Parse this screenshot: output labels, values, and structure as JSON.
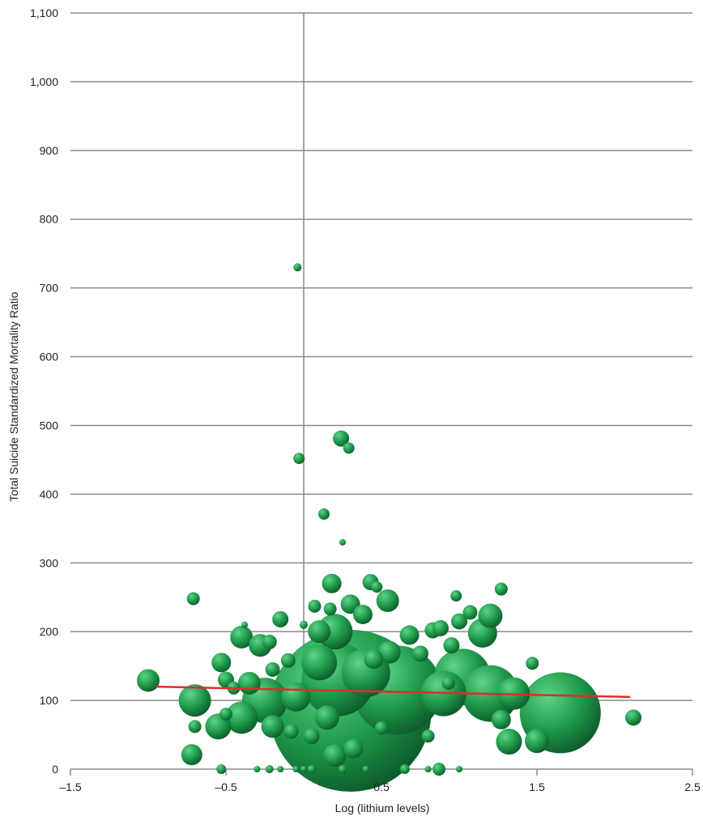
{
  "chart_data": {
    "type": "scatter",
    "subtype": "bubble",
    "title": "",
    "xlabel": "Log (lithium levels)",
    "ylabel": "Total Suicide Standardized Mortality Ratio",
    "xlim": [
      -1.5,
      2.5
    ],
    "ylim": [
      0,
      1100
    ],
    "x_ticks": [
      -1.5,
      -0.5,
      0.5,
      1.5,
      2.5
    ],
    "x_tick_labels": [
      "–1.5",
      "–0.5",
      "0.5",
      "1.5",
      "2.5"
    ],
    "y_ticks": [
      0,
      100,
      200,
      300,
      400,
      500,
      600,
      700,
      800,
      900,
      1000,
      1100
    ],
    "y_tick_labels": [
      "0",
      "100",
      "200",
      "300",
      "400",
      "500",
      "600",
      "700",
      "800",
      "900",
      "1,000",
      "1,100"
    ],
    "grid": "horizontal",
    "zero_line_x": 0,
    "bubble_color": "#1f9a4a",
    "trend_color": "#e32b2b",
    "trendline": {
      "x": [
        -0.95,
        2.1
      ],
      "y": [
        120,
        105
      ]
    },
    "points": [
      {
        "x": -0.04,
        "y": 730,
        "size": 5
      },
      {
        "x": -0.03,
        "y": 452,
        "size": 7
      },
      {
        "x": 0.24,
        "y": 481,
        "size": 10
      },
      {
        "x": 0.29,
        "y": 467,
        "size": 7
      },
      {
        "x": 0.13,
        "y": 371,
        "size": 7
      },
      {
        "x": 0.25,
        "y": 330,
        "size": 4
      },
      {
        "x": -0.71,
        "y": 248,
        "size": 8
      },
      {
        "x": 0.18,
        "y": 270,
        "size": 12
      },
      {
        "x": 0.43,
        "y": 272,
        "size": 10
      },
      {
        "x": 0.47,
        "y": 265,
        "size": 7
      },
      {
        "x": 1.27,
        "y": 262,
        "size": 8
      },
      {
        "x": 0.98,
        "y": 252,
        "size": 7
      },
      {
        "x": 0.54,
        "y": 245,
        "size": 14
      },
      {
        "x": 0.3,
        "y": 240,
        "size": 12
      },
      {
        "x": 0.07,
        "y": 237,
        "size": 8
      },
      {
        "x": 0.17,
        "y": 233,
        "size": 8
      },
      {
        "x": -0.15,
        "y": 218,
        "size": 10
      },
      {
        "x": -0.38,
        "y": 210,
        "size": 4
      },
      {
        "x": 0.0,
        "y": 210,
        "size": 5
      },
      {
        "x": 0.1,
        "y": 200,
        "size": 14
      },
      {
        "x": 0.2,
        "y": 200,
        "size": 22
      },
      {
        "x": -0.4,
        "y": 192,
        "size": 14
      },
      {
        "x": -0.28,
        "y": 180,
        "size": 14
      },
      {
        "x": -0.22,
        "y": 185,
        "size": 9
      },
      {
        "x": 0.38,
        "y": 225,
        "size": 12
      },
      {
        "x": 0.45,
        "y": 160,
        "size": 12
      },
      {
        "x": 0.68,
        "y": 195,
        "size": 12
      },
      {
        "x": 0.83,
        "y": 202,
        "size": 10
      },
      {
        "x": 0.88,
        "y": 205,
        "size": 10
      },
      {
        "x": 0.95,
        "y": 180,
        "size": 10
      },
      {
        "x": 1.0,
        "y": 215,
        "size": 10
      },
      {
        "x": 1.07,
        "y": 228,
        "size": 9
      },
      {
        "x": 1.2,
        "y": 223,
        "size": 15
      },
      {
        "x": 1.15,
        "y": 198,
        "size": 18
      },
      {
        "x": 1.47,
        "y": 154,
        "size": 8
      },
      {
        "x": -0.53,
        "y": 155,
        "size": 12
      },
      {
        "x": -0.5,
        "y": 130,
        "size": 10
      },
      {
        "x": -0.45,
        "y": 118,
        "size": 8
      },
      {
        "x": -0.35,
        "y": 125,
        "size": 14
      },
      {
        "x": -0.2,
        "y": 145,
        "size": 9
      },
      {
        "x": -0.1,
        "y": 158,
        "size": 9
      },
      {
        "x": 0.1,
        "y": 155,
        "size": 22
      },
      {
        "x": 0.22,
        "y": 130,
        "size": 45
      },
      {
        "x": 0.3,
        "y": 85,
        "size": 100
      },
      {
        "x": 0.6,
        "y": 115,
        "size": 55
      },
      {
        "x": 0.4,
        "y": 140,
        "size": 30
      },
      {
        "x": 0.55,
        "y": 170,
        "size": 14
      },
      {
        "x": 0.75,
        "y": 168,
        "size": 10
      },
      {
        "x": 1.02,
        "y": 134,
        "size": 35
      },
      {
        "x": 0.9,
        "y": 110,
        "size": 28
      },
      {
        "x": 1.2,
        "y": 110,
        "size": 35
      },
      {
        "x": 1.35,
        "y": 110,
        "size": 20
      },
      {
        "x": 1.65,
        "y": 82,
        "size": 50
      },
      {
        "x": 2.12,
        "y": 75,
        "size": 10
      },
      {
        "x": -1.0,
        "y": 129,
        "size": 14
      },
      {
        "x": -0.7,
        "y": 100,
        "size": 20
      },
      {
        "x": -0.7,
        "y": 62,
        "size": 8
      },
      {
        "x": -0.72,
        "y": 21,
        "size": 13
      },
      {
        "x": -0.55,
        "y": 62,
        "size": 16
      },
      {
        "x": -0.5,
        "y": 80,
        "size": 8
      },
      {
        "x": -0.4,
        "y": 75,
        "size": 20
      },
      {
        "x": -0.25,
        "y": 100,
        "size": 28
      },
      {
        "x": -0.2,
        "y": 62,
        "size": 14
      },
      {
        "x": -0.05,
        "y": 105,
        "size": 18
      },
      {
        "x": -0.08,
        "y": 55,
        "size": 9
      },
      {
        "x": 0.05,
        "y": 48,
        "size": 10
      },
      {
        "x": 0.15,
        "y": 75,
        "size": 15
      },
      {
        "x": 0.2,
        "y": 20,
        "size": 14
      },
      {
        "x": 0.32,
        "y": 30,
        "size": 12
      },
      {
        "x": 0.5,
        "y": 60,
        "size": 8
      },
      {
        "x": 0.8,
        "y": 48,
        "size": 8
      },
      {
        "x": 1.32,
        "y": 40,
        "size": 16
      },
      {
        "x": 1.5,
        "y": 41,
        "size": 15
      },
      {
        "x": 0.93,
        "y": 125,
        "size": 8
      },
      {
        "x": 1.27,
        "y": 72,
        "size": 12
      },
      {
        "x": -0.53,
        "y": 0,
        "size": 6
      },
      {
        "x": -0.3,
        "y": 0,
        "size": 4
      },
      {
        "x": -0.22,
        "y": 0,
        "size": 5
      },
      {
        "x": -0.15,
        "y": 0,
        "size": 4
      },
      {
        "x": -0.05,
        "y": 0,
        "size": 4
      },
      {
        "x": 0.0,
        "y": 0,
        "size": 4
      },
      {
        "x": 0.05,
        "y": 0,
        "size": 5
      },
      {
        "x": 0.25,
        "y": 0,
        "size": 5
      },
      {
        "x": 0.4,
        "y": 0,
        "size": 4
      },
      {
        "x": 0.65,
        "y": 0,
        "size": 6
      },
      {
        "x": 0.8,
        "y": 0,
        "size": 4
      },
      {
        "x": 0.87,
        "y": 0,
        "size": 8
      },
      {
        "x": 1.0,
        "y": 0,
        "size": 4
      }
    ]
  }
}
